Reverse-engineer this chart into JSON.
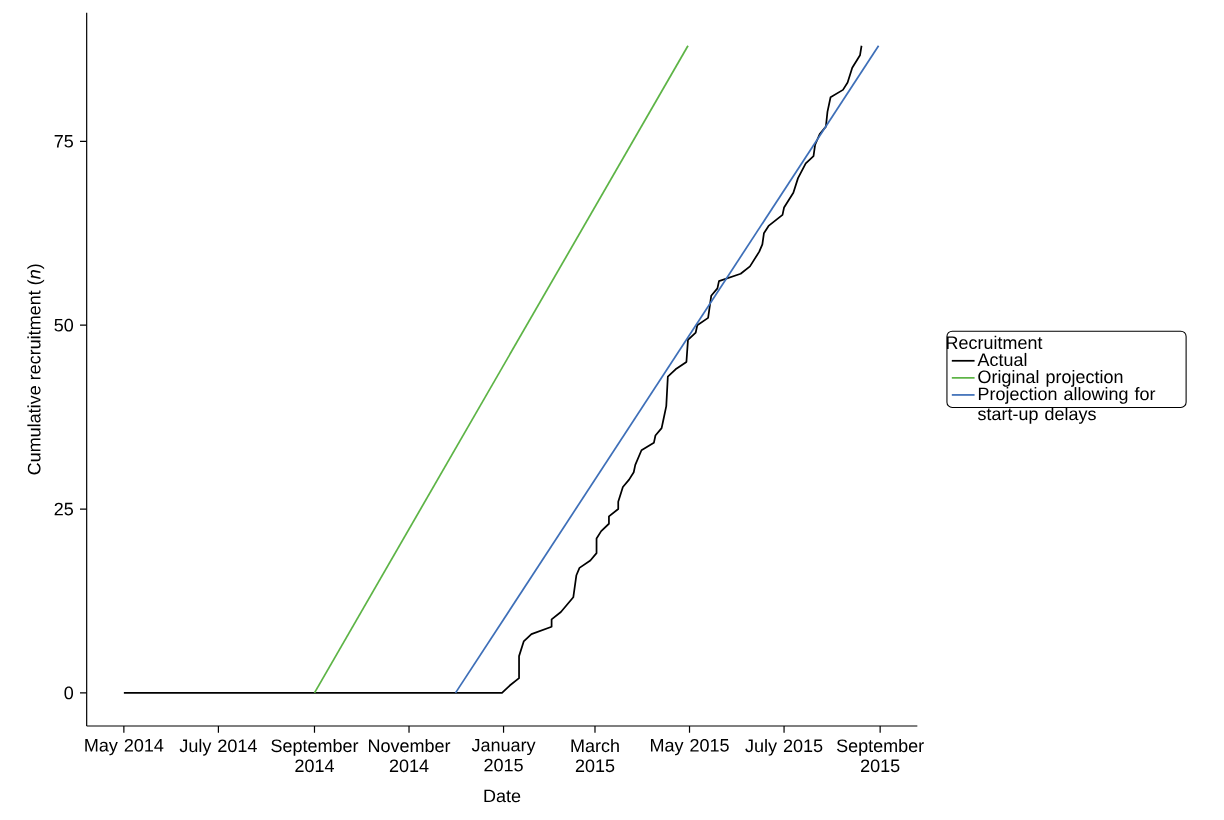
{
  "chart_data": {
    "type": "line",
    "xlabel": "Date",
    "ylabel": "Cumulative recruitment (*n*)",
    "legend_title": "Recruitment",
    "legend": "right",
    "grid": false,
    "xlim": [
      "2014-04-07",
      "2015-09-25"
    ],
    "ylim": [
      -4.5,
      92.5
    ],
    "yticks": [
      0,
      25,
      50,
      75
    ],
    "xticks": [
      {
        "value": "2014-05-01",
        "label": "May 2014"
      },
      {
        "value": "2014-07-01",
        "label": "July 2014"
      },
      {
        "value": "2014-09-01",
        "label": "September 2014"
      },
      {
        "value": "2014-11-01",
        "label": "November 2014"
      },
      {
        "value": "2015-01-01",
        "label": "January 2015"
      },
      {
        "value": "2015-03-01",
        "label": "March 2015"
      },
      {
        "value": "2015-05-01",
        "label": "May 2015"
      },
      {
        "value": "2015-07-01",
        "label": "July 2015"
      },
      {
        "value": "2015-09-01",
        "label": "September 2015"
      }
    ],
    "series": [
      {
        "name": "Actual",
        "color": "#000000",
        "x": [
          "2014-05-01",
          "2014-12-31",
          "2015-01-05",
          "2015-01-11",
          "2015-01-11",
          "2015-01-14",
          "2015-01-19",
          "2015-02-01",
          "2015-02-01",
          "2015-02-07",
          "2015-02-11",
          "2015-02-15",
          "2015-02-17",
          "2015-02-19",
          "2015-02-26",
          "2015-03-02",
          "2015-03-02",
          "2015-03-05",
          "2015-03-10",
          "2015-03-10",
          "2015-03-16",
          "2015-03-16",
          "2015-03-19",
          "2015-03-23",
          "2015-03-26",
          "2015-03-27",
          "2015-03-31",
          "2015-04-08",
          "2015-04-09",
          "2015-04-13",
          "2015-04-14",
          "2015-04-16",
          "2015-04-17",
          "2015-04-22",
          "2015-04-29",
          "2015-04-30",
          "2015-05-05",
          "2015-05-06",
          "2015-05-13",
          "2015-05-15",
          "2015-05-19",
          "2015-05-20",
          "2015-05-27",
          "2015-06-03",
          "2015-06-09",
          "2015-06-15",
          "2015-06-17",
          "2015-06-18",
          "2015-06-21",
          "2015-06-30",
          "2015-07-01",
          "2015-07-07",
          "2015-07-10",
          "2015-07-15",
          "2015-07-20",
          "2015-07-21",
          "2015-07-24",
          "2015-07-28",
          "2015-07-29",
          "2015-07-31",
          "2015-08-08",
          "2015-08-11",
          "2015-08-14",
          "2015-08-19",
          "2015-08-20"
        ],
        "values": [
          0,
          0,
          1,
          2,
          5,
          7,
          8,
          9,
          10,
          11,
          12,
          13,
          16,
          17,
          18,
          19,
          21,
          22,
          23,
          24,
          25,
          26,
          28,
          29,
          30,
          31,
          33,
          34,
          35,
          36,
          37,
          39,
          43,
          44,
          45,
          48,
          49,
          50,
          51,
          54,
          55,
          56,
          56.5,
          57,
          58,
          60,
          61,
          62.5,
          63.5,
          65,
          66,
          68,
          70,
          72,
          73,
          74.5,
          76,
          77,
          79,
          81,
          82,
          83,
          85,
          86.7,
          88
        ]
      },
      {
        "name": "Original projection",
        "color": "#5db446",
        "x": [
          "2014-09-01",
          "2015-04-30"
        ],
        "values": [
          0,
          88
        ]
      },
      {
        "name": "Projection allowing for start-up delays",
        "color": "#3e6fb8",
        "x": [
          "2014-12-01",
          "2015-08-31"
        ],
        "values": [
          0,
          88
        ]
      }
    ]
  }
}
